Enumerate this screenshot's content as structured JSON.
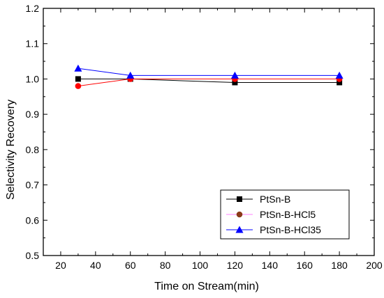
{
  "chart_data": {
    "type": "line",
    "xlabel": "Time on Stream(min)",
    "ylabel": "Selectivity Recovery",
    "xlim": [
      10,
      200
    ],
    "ylim": [
      0.5,
      1.2
    ],
    "x_ticks": [
      20,
      40,
      60,
      80,
      100,
      120,
      140,
      160,
      180,
      200
    ],
    "y_ticks": [
      0.5,
      0.6,
      0.7,
      0.8,
      0.9,
      1.0,
      1.1,
      1.2
    ],
    "y_tick_labels": [
      "0.5",
      "0.6",
      "0.7",
      "0.8",
      "0.9",
      "1.0",
      "1.1",
      "1.2"
    ],
    "x": [
      30,
      60,
      120,
      180
    ],
    "legend_position": "bottom-right",
    "grid": false,
    "series": [
      {
        "name": "PtSn-B",
        "values": [
          1.0,
          1.0,
          0.99,
          0.99
        ],
        "color": "#000000",
        "marker": "square"
      },
      {
        "name": "PtSn-B-HCl5",
        "values": [
          0.98,
          1.0,
          1.0,
          1.0
        ],
        "color": "#ff0000",
        "marker": "circle",
        "legend_marker_color": "#8b3a1a",
        "legend_line_color": "#ff80ff"
      },
      {
        "name": "PtSn-B-HCl35",
        "values": [
          1.03,
          1.01,
          1.01,
          1.01
        ],
        "color": "#0000ff",
        "marker": "triangle"
      }
    ]
  }
}
